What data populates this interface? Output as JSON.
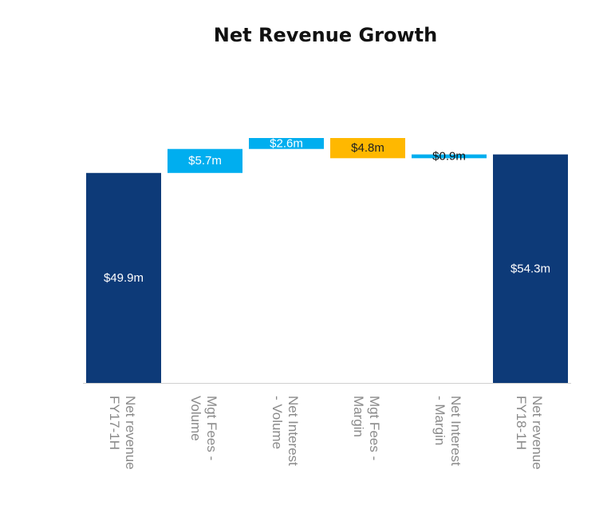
{
  "chart_data": {
    "type": "bar",
    "subtype": "waterfall",
    "title": "Net Revenue Growth",
    "categories": [
      [
        "Net revenue",
        "FY17-1H"
      ],
      [
        "Mgt Fees -",
        "Volume"
      ],
      [
        "Net Interest",
        "- Volume"
      ],
      [
        "Mgt Fees -",
        "Margin"
      ],
      [
        "Net Interest",
        "- Margin"
      ],
      [
        "Net revenue",
        "FY18-1H"
      ]
    ],
    "bars": [
      {
        "kind": "total",
        "start": 0,
        "end": 49.9,
        "label": "$49.9m",
        "color": "#0d3a78",
        "label_color": "#ffffff"
      },
      {
        "kind": "increase",
        "start": 49.9,
        "end": 55.6,
        "label": "$5.7m",
        "color": "#00aeef",
        "label_color": "#ffffff"
      },
      {
        "kind": "increase",
        "start": 55.6,
        "end": 58.2,
        "label": "$2.6m",
        "color": "#00aeef",
        "label_color": "#ffffff"
      },
      {
        "kind": "decrease",
        "start": 58.2,
        "end": 53.4,
        "label": "$4.8m",
        "color": "#ffb800",
        "label_color": "#222222"
      },
      {
        "kind": "increase",
        "start": 53.4,
        "end": 54.3,
        "label": "$0.9m",
        "color": "#00aeef",
        "label_color": "#111111"
      },
      {
        "kind": "total",
        "start": 0,
        "end": 54.3,
        "label": "$54.3m",
        "color": "#0d3a78",
        "label_color": "#ffffff"
      }
    ],
    "ylim": [
      0,
      58.2
    ],
    "grid": false,
    "legend": "none",
    "axis_color": "#d0d0d0"
  }
}
